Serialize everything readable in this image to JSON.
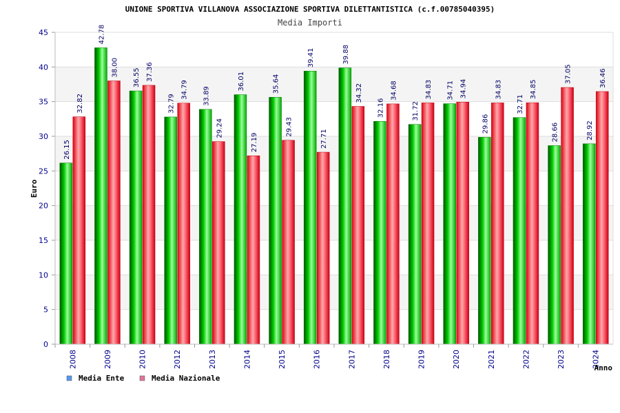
{
  "chart_data": {
    "type": "bar",
    "title": "UNIONE SPORTIVA VILLANOVA ASSOCIAZIONE SPORTIVA DILETTANTISTICA (c.f.00785040395)",
    "subtitle": "Media Importi",
    "xlabel": "Anno",
    "ylabel": "Euro",
    "ylim": [
      0,
      45
    ],
    "yticks": [
      0,
      5,
      10,
      15,
      20,
      25,
      30,
      35,
      40,
      45
    ],
    "grid": true,
    "legend_position": "bottom-left",
    "categories": [
      "2008",
      "2009",
      "2010",
      "2012",
      "2013",
      "2014",
      "2015",
      "2016",
      "2017",
      "2018",
      "2019",
      "2020",
      "2021",
      "2022",
      "2023",
      "2024"
    ],
    "series": [
      {
        "name": "Media Ente",
        "color": "#00aa00",
        "legend_color": "#5599ee",
        "values": [
          26.15,
          42.78,
          36.55,
          32.79,
          33.89,
          36.01,
          35.64,
          39.41,
          39.88,
          32.16,
          31.72,
          34.71,
          29.86,
          32.71,
          28.66,
          28.92
        ],
        "labels": [
          "26.15",
          "42.78",
          "36.55",
          "32.79",
          "33.89",
          "36.01",
          "35.64",
          "39.41",
          "39.88",
          "32.16",
          "31.72",
          "34.71",
          "29.86",
          "32.71",
          "28.66",
          "28.92"
        ]
      },
      {
        "name": "Media Nazionale",
        "color": "#dd1122",
        "legend_color": "#dd7799",
        "values": [
          32.82,
          38.0,
          37.36,
          34.79,
          29.24,
          27.19,
          29.43,
          27.71,
          34.32,
          34.68,
          34.83,
          34.94,
          34.83,
          34.85,
          37.05,
          36.46
        ],
        "labels": [
          "32.82",
          "38.00",
          "37.36",
          "34.79",
          "29.24",
          "27.19",
          "29.43",
          "27.71",
          "34.32",
          "34.68",
          "34.83",
          "34.94",
          "34.83",
          "34.85",
          "37.05",
          "36.46"
        ]
      }
    ]
  }
}
